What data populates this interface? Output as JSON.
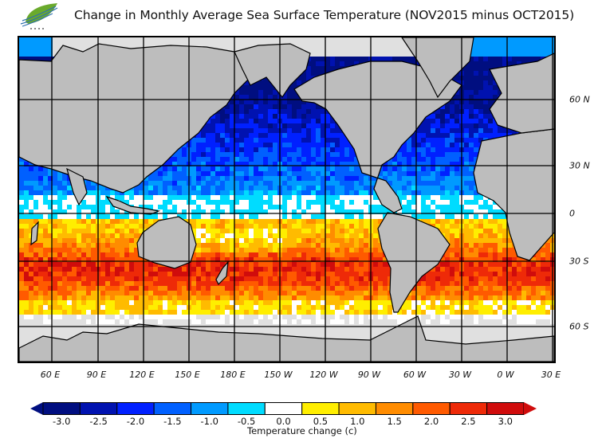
{
  "title": "Change in Monthly Average Sea Surface Temperature (NOV2015 minus OCT2015)",
  "logo": {
    "icon": "green-leaf-logo-icon"
  },
  "map": {
    "projection": "cylindrical",
    "lon_labels": [
      "60 E",
      "90 E",
      "120 E",
      "150 E",
      "180 E",
      "150 W",
      "120 W",
      "90 W",
      "60 W",
      "30 W",
      "0 W",
      "30 E"
    ],
    "lat_labels": [
      "60 N",
      "30 N",
      "0",
      "30 S",
      "60 S"
    ],
    "land_color": "#bdbdbd",
    "ice_color": "#e0e0e0",
    "summary": {
      "northern_hemisphere": "cooling (-0.5 to -3.0 c), strongest in North Pacific and North Atlantic",
      "southern_hemisphere": "warming (+0.5 to +3.0 c), strongest band near 30-40 S and Indonesian seas",
      "high_latitudes": "no data / sea ice"
    }
  },
  "colorbar": {
    "title": "Temperature change  (c)",
    "ticks": [
      "-3.0",
      "-2.5",
      "-2.0",
      "-1.5",
      "-1.0",
      "-0.5",
      "0.0",
      "0.5",
      "1.0",
      "1.5",
      "2.0",
      "2.5",
      "3.0"
    ],
    "colors": [
      "#000e80",
      "#0012b0",
      "#0020ff",
      "#0060ff",
      "#009aff",
      "#00dcff",
      "#ffffff",
      "#ffee00",
      "#ffbb00",
      "#ff8c00",
      "#ff5a00",
      "#ee2a08",
      "#d00c0c"
    ],
    "extend": "both"
  }
}
